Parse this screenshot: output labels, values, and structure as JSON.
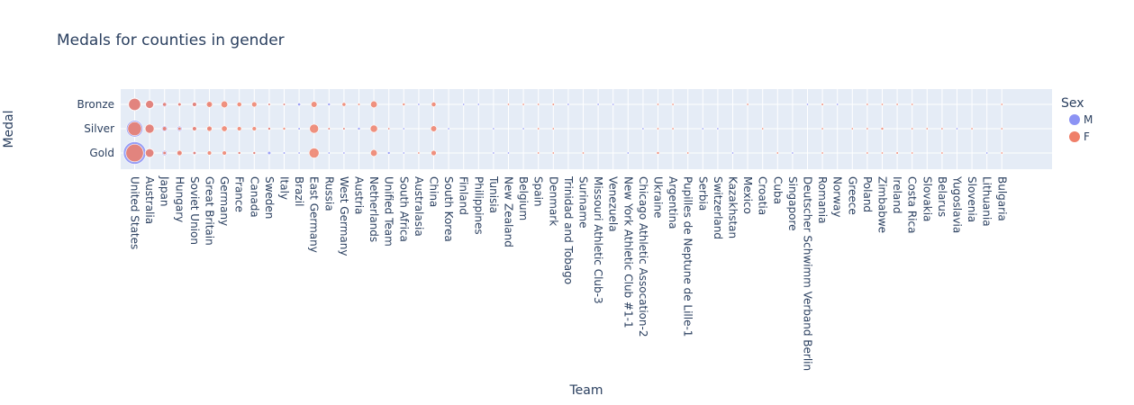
{
  "chart_data": {
    "type": "scatter",
    "title": "Medals for counties in gender",
    "xlabel": "Team",
    "ylabel": "Medal",
    "legend_title": "Sex",
    "legend_position": "top-right",
    "categories": [
      "United States",
      "Australia",
      "Japan",
      "Hungary",
      "Soviet Union",
      "Great Britain",
      "Germany",
      "France",
      "Canada",
      "Sweden",
      "Italy",
      "Brazil",
      "East Germany",
      "Russia",
      "West Germany",
      "Austria",
      "Netherlands",
      "Unified Team",
      "South Africa",
      "Australasia",
      "China",
      "South Korea",
      "Finland",
      "Philippines",
      "Tunisia",
      "New Zealand",
      "Belgium",
      "Spain",
      "Denmark",
      "Trinidad and Tobago",
      "Suriname",
      "Missouri Athletic Club-3",
      "Venezuela",
      "New York Athletic Club #1-1",
      "Chicago Athletic Assocation-2",
      "Ukraine",
      "Argentina",
      "Pupilles de Neptune de Lille-1",
      "Serbia",
      "Switzerland",
      "Kazakhstan",
      "Mexico",
      "Croatia",
      "Cuba",
      "Singapore",
      "Deutscher Schwimm Verband Berlin",
      "Romania",
      "Norway",
      "Greece",
      "Poland",
      "Zimbabwe",
      "Ireland",
      "Costa Rica",
      "Slovakia",
      "Belarus",
      "Yugoslavia",
      "Slovenia",
      "Lithuania",
      "Bulgaria"
    ],
    "medals": [
      "Gold",
      "Silver",
      "Bronze"
    ],
    "series": [
      {
        "name": "M",
        "color": "#8c93f4",
        "points": [
          {
            "team": "United States",
            "medal": "Gold",
            "count": 280
          },
          {
            "team": "United States",
            "medal": "Silver",
            "count": 150
          },
          {
            "team": "United States",
            "medal": "Bronze",
            "count": 90
          },
          {
            "team": "Australia",
            "medal": "Gold",
            "count": 45
          },
          {
            "team": "Australia",
            "medal": "Silver",
            "count": 40
          },
          {
            "team": "Australia",
            "medal": "Bronze",
            "count": 45
          },
          {
            "team": "Japan",
            "medal": "Gold",
            "count": 15
          },
          {
            "team": "Japan",
            "medal": "Silver",
            "count": 20
          },
          {
            "team": "Japan",
            "medal": "Bronze",
            "count": 15
          },
          {
            "team": "Hungary",
            "medal": "Gold",
            "count": 6
          },
          {
            "team": "Hungary",
            "medal": "Silver",
            "count": 15
          },
          {
            "team": "Hungary",
            "medal": "Bronze",
            "count": 8
          },
          {
            "team": "Soviet Union",
            "medal": "Gold",
            "count": 10
          },
          {
            "team": "Soviet Union",
            "medal": "Silver",
            "count": 8
          },
          {
            "team": "Soviet Union",
            "medal": "Bronze",
            "count": 15
          },
          {
            "team": "Great Britain",
            "medal": "Silver",
            "count": 5
          },
          {
            "team": "Great Britain",
            "medal": "Bronze",
            "count": 6
          },
          {
            "team": "France",
            "medal": "Gold",
            "count": 4
          },
          {
            "team": "Canada",
            "medal": "Gold",
            "count": 4
          },
          {
            "team": "Sweden",
            "medal": "Gold",
            "count": 6
          },
          {
            "team": "Sweden",
            "medal": "Silver",
            "count": 4
          },
          {
            "team": "Sweden",
            "medal": "Bronze",
            "count": 5
          },
          {
            "team": "Italy",
            "medal": "Gold",
            "count": 3
          },
          {
            "team": "Italy",
            "medal": "Bronze",
            "count": 4
          },
          {
            "team": "Brazil",
            "medal": "Gold",
            "count": 2
          },
          {
            "team": "Brazil",
            "medal": "Silver",
            "count": 3
          },
          {
            "team": "Brazil",
            "medal": "Bronze",
            "count": 5
          },
          {
            "team": "Russia",
            "medal": "Gold",
            "count": 2
          },
          {
            "team": "Russia",
            "medal": "Silver",
            "count": 3
          },
          {
            "team": "Russia",
            "medal": "Bronze",
            "count": 4
          },
          {
            "team": "West Germany",
            "medal": "Gold",
            "count": 2
          },
          {
            "team": "West Germany",
            "medal": "Silver",
            "count": 3
          },
          {
            "team": "Austria",
            "medal": "Silver",
            "count": 4
          },
          {
            "team": "Unified Team",
            "medal": "Gold",
            "count": 4
          },
          {
            "team": "Unified Team",
            "medal": "Silver",
            "count": 2
          },
          {
            "team": "South Africa",
            "medal": "Gold",
            "count": 2
          },
          {
            "team": "South Africa",
            "medal": "Silver",
            "count": 2
          },
          {
            "team": "Australasia",
            "medal": "Bronze",
            "count": 2
          },
          {
            "team": "South Korea",
            "medal": "Silver",
            "count": 1
          },
          {
            "team": "Finland",
            "medal": "Bronze",
            "count": 1
          },
          {
            "team": "Philippines",
            "medal": "Bronze",
            "count": 1
          },
          {
            "team": "Tunisia",
            "medal": "Gold",
            "count": 1
          },
          {
            "team": "Tunisia",
            "medal": "Silver",
            "count": 1
          },
          {
            "team": "New Zealand",
            "medal": "Gold",
            "count": 1
          },
          {
            "team": "Belgium",
            "medal": "Silver",
            "count": 1
          },
          {
            "team": "Trinidad and Tobago",
            "medal": "Bronze",
            "count": 1
          },
          {
            "team": "Missouri Athletic Club-3",
            "medal": "Bronze",
            "count": 1
          },
          {
            "team": "Venezuela",
            "medal": "Bronze",
            "count": 1
          },
          {
            "team": "New York Athletic Club #1-1",
            "medal": "Gold",
            "count": 1
          },
          {
            "team": "Chicago Athletic Assocation-2",
            "medal": "Silver",
            "count": 1
          },
          {
            "team": "Serbia",
            "medal": "Silver",
            "count": 1
          },
          {
            "team": "Switzerland",
            "medal": "Silver",
            "count": 1
          },
          {
            "team": "Kazakhstan",
            "medal": "Gold",
            "count": 1
          },
          {
            "team": "Singapore",
            "medal": "Gold",
            "count": 1
          },
          {
            "team": "Deutscher Schwimm Verband Berlin",
            "medal": "Bronze",
            "count": 1
          },
          {
            "team": "Norway",
            "medal": "Bronze",
            "count": 1
          },
          {
            "team": "Yugoslavia",
            "medal": "Silver",
            "count": 1
          },
          {
            "team": "Lithuania",
            "medal": "Gold",
            "count": 1
          }
        ]
      },
      {
        "name": "F",
        "color": "#ef7f69",
        "points": [
          {
            "team": "United States",
            "medal": "Gold",
            "count": 170
          },
          {
            "team": "United States",
            "medal": "Silver",
            "count": 105
          },
          {
            "team": "United States",
            "medal": "Bronze",
            "count": 80
          },
          {
            "team": "Australia",
            "medal": "Gold",
            "count": 40
          },
          {
            "team": "Australia",
            "medal": "Silver",
            "count": 45
          },
          {
            "team": "Australia",
            "medal": "Bronze",
            "count": 35
          },
          {
            "team": "Japan",
            "medal": "Gold",
            "count": 6
          },
          {
            "team": "Japan",
            "medal": "Silver",
            "count": 10
          },
          {
            "team": "Japan",
            "medal": "Bronze",
            "count": 8
          },
          {
            "team": "Hungary",
            "medal": "Gold",
            "count": 15
          },
          {
            "team": "Hungary",
            "medal": "Silver",
            "count": 6
          },
          {
            "team": "Hungary",
            "medal": "Bronze",
            "count": 6
          },
          {
            "team": "Soviet Union",
            "medal": "Gold",
            "count": 5
          },
          {
            "team": "Soviet Union",
            "medal": "Silver",
            "count": 10
          },
          {
            "team": "Soviet Union",
            "medal": "Bronze",
            "count": 10
          },
          {
            "team": "Great Britain",
            "medal": "Gold",
            "count": 10
          },
          {
            "team": "Great Britain",
            "medal": "Silver",
            "count": 15
          },
          {
            "team": "Great Britain",
            "medal": "Bronze",
            "count": 20
          },
          {
            "team": "Germany",
            "medal": "Gold",
            "count": 10
          },
          {
            "team": "Germany",
            "medal": "Silver",
            "count": 18
          },
          {
            "team": "Germany",
            "medal": "Bronze",
            "count": 25
          },
          {
            "team": "France",
            "medal": "Gold",
            "count": 4
          },
          {
            "team": "France",
            "medal": "Silver",
            "count": 10
          },
          {
            "team": "France",
            "medal": "Bronze",
            "count": 12
          },
          {
            "team": "Canada",
            "medal": "Gold",
            "count": 4
          },
          {
            "team": "Canada",
            "medal": "Silver",
            "count": 10
          },
          {
            "team": "Canada",
            "medal": "Bronze",
            "count": 15
          },
          {
            "team": "Sweden",
            "medal": "Silver",
            "count": 4
          },
          {
            "team": "Sweden",
            "medal": "Bronze",
            "count": 3
          },
          {
            "team": "Italy",
            "medal": "Silver",
            "count": 4
          },
          {
            "team": "Italy",
            "medal": "Bronze",
            "count": 3
          },
          {
            "team": "East Germany",
            "medal": "Gold",
            "count": 55
          },
          {
            "team": "East Germany",
            "medal": "Silver",
            "count": 45
          },
          {
            "team": "East Germany",
            "medal": "Bronze",
            "count": 20
          },
          {
            "team": "Russia",
            "medal": "Silver",
            "count": 3
          },
          {
            "team": "West Germany",
            "medal": "Silver",
            "count": 3
          },
          {
            "team": "West Germany",
            "medal": "Bronze",
            "count": 8
          },
          {
            "team": "Austria",
            "medal": "Bronze",
            "count": 3
          },
          {
            "team": "Netherlands",
            "medal": "Gold",
            "count": 25
          },
          {
            "team": "Netherlands",
            "medal": "Silver",
            "count": 30
          },
          {
            "team": "Netherlands",
            "medal": "Bronze",
            "count": 25
          },
          {
            "team": "Unified Team",
            "medal": "Silver",
            "count": 2
          },
          {
            "team": "South Africa",
            "medal": "Bronze",
            "count": 4
          },
          {
            "team": "Australasia",
            "medal": "Gold",
            "count": 2
          },
          {
            "team": "China",
            "medal": "Gold",
            "count": 15
          },
          {
            "team": "China",
            "medal": "Silver",
            "count": 20
          },
          {
            "team": "China",
            "medal": "Bronze",
            "count": 12
          },
          {
            "team": "New Zealand",
            "medal": "Bronze",
            "count": 1
          },
          {
            "team": "Belgium",
            "medal": "Bronze",
            "count": 1
          },
          {
            "team": "Spain",
            "medal": "Gold",
            "count": 1
          },
          {
            "team": "Spain",
            "medal": "Silver",
            "count": 2
          },
          {
            "team": "Spain",
            "medal": "Bronze",
            "count": 2
          },
          {
            "team": "Denmark",
            "medal": "Gold",
            "count": 2
          },
          {
            "team": "Denmark",
            "medal": "Silver",
            "count": 2
          },
          {
            "team": "Denmark",
            "medal": "Bronze",
            "count": 3
          },
          {
            "team": "Suriname",
            "medal": "Gold",
            "count": 1
          },
          {
            "team": "Ukraine",
            "medal": "Gold",
            "count": 4
          },
          {
            "team": "Ukraine",
            "medal": "Silver",
            "count": 1
          },
          {
            "team": "Ukraine",
            "medal": "Bronze",
            "count": 1
          },
          {
            "team": "Argentina",
            "medal": "Silver",
            "count": 1
          },
          {
            "team": "Argentina",
            "medal": "Bronze",
            "count": 1
          },
          {
            "team": "Pupilles de Neptune de Lille-1",
            "medal": "Gold",
            "count": 1
          },
          {
            "team": "Mexico",
            "medal": "Bronze",
            "count": 1
          },
          {
            "team": "Croatia",
            "medal": "Silver",
            "count": 1
          },
          {
            "team": "Cuba",
            "medal": "Gold",
            "count": 1
          },
          {
            "team": "Romania",
            "medal": "Gold",
            "count": 2
          },
          {
            "team": "Romania",
            "medal": "Silver",
            "count": 2
          },
          {
            "team": "Romania",
            "medal": "Bronze",
            "count": 3
          },
          {
            "team": "Greece",
            "medal": "Silver",
            "count": 1
          },
          {
            "team": "Poland",
            "medal": "Gold",
            "count": 1
          },
          {
            "team": "Poland",
            "medal": "Silver",
            "count": 2
          },
          {
            "team": "Poland",
            "medal": "Bronze",
            "count": 1
          },
          {
            "team": "Zimbabwe",
            "medal": "Gold",
            "count": 2
          },
          {
            "team": "Zimbabwe",
            "medal": "Silver",
            "count": 4
          },
          {
            "team": "Zimbabwe",
            "medal": "Bronze",
            "count": 1
          },
          {
            "team": "Ireland",
            "medal": "Gold",
            "count": 3
          },
          {
            "team": "Ireland",
            "medal": "Bronze",
            "count": 1
          },
          {
            "team": "Costa Rica",
            "medal": "Gold",
            "count": 1
          },
          {
            "team": "Costa Rica",
            "medal": "Silver",
            "count": 1
          },
          {
            "team": "Costa Rica",
            "medal": "Bronze",
            "count": 2
          },
          {
            "team": "Slovakia",
            "medal": "Silver",
            "count": 2
          },
          {
            "team": "Belarus",
            "medal": "Gold",
            "count": 1
          },
          {
            "team": "Belarus",
            "medal": "Silver",
            "count": 2
          },
          {
            "team": "Slovenia",
            "medal": "Silver",
            "count": 1
          },
          {
            "team": "Bulgaria",
            "medal": "Gold",
            "count": 1
          },
          {
            "team": "Bulgaria",
            "medal": "Silver",
            "count": 1
          },
          {
            "team": "Bulgaria",
            "medal": "Bronze",
            "count": 1
          }
        ]
      }
    ]
  }
}
